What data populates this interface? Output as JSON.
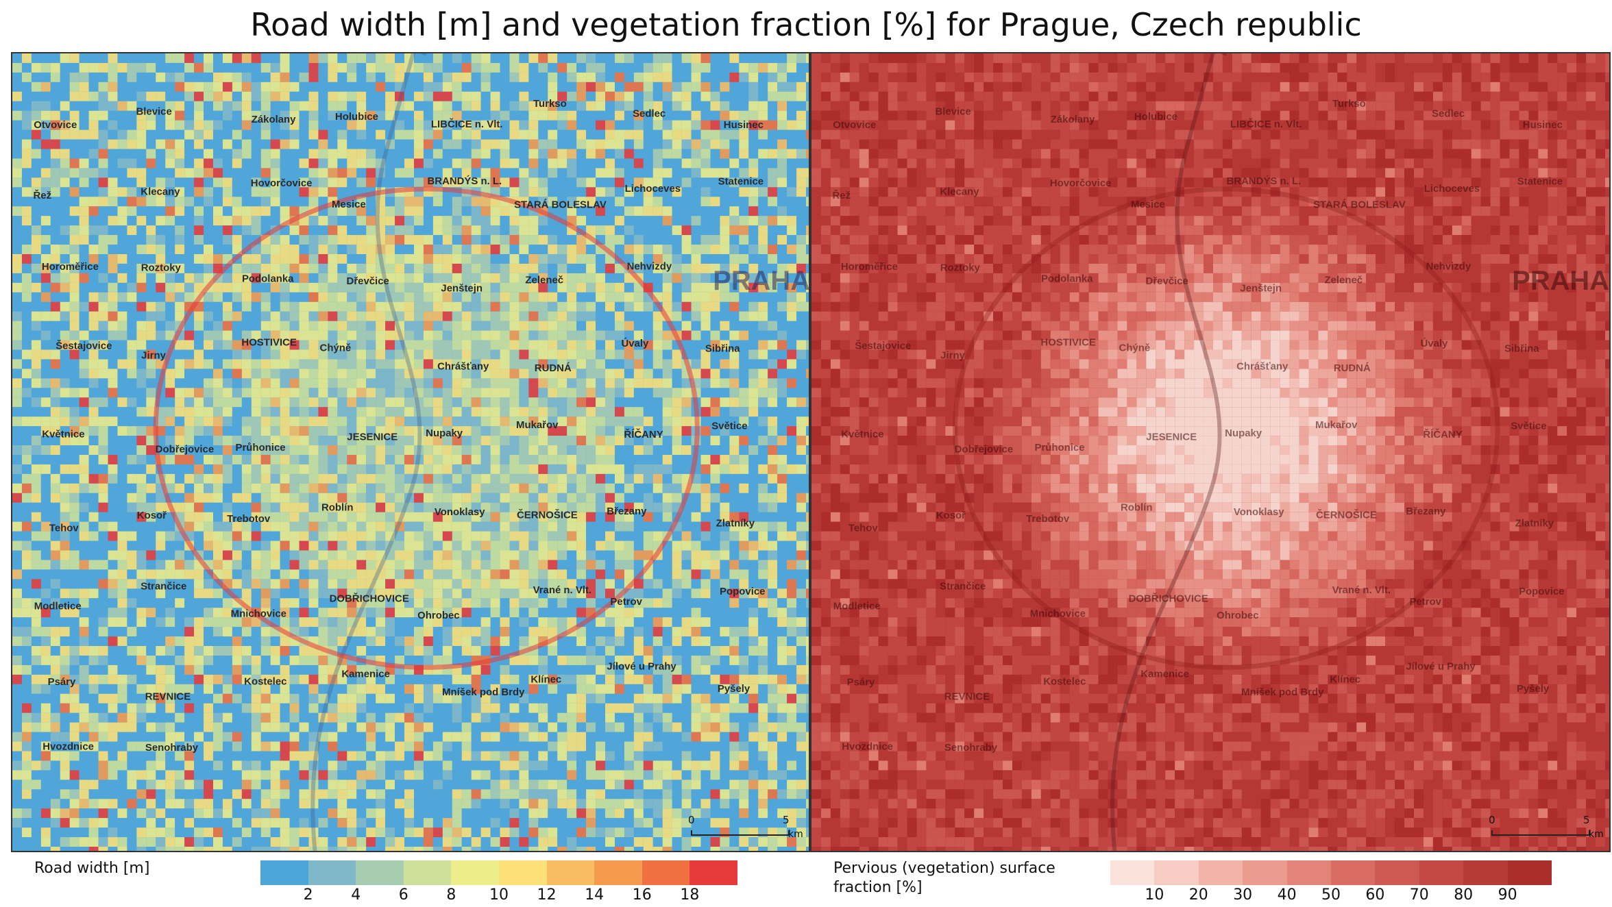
{
  "title": "Road width [m] and vegetation fraction [%] for Prague, Czech republic",
  "left_map": {
    "legend_label": "Road width [m]",
    "ticks": [
      "2",
      "4",
      "6",
      "8",
      "10",
      "12",
      "14",
      "16",
      "18"
    ],
    "colors": [
      "#4ea6d8",
      "#7fb8c9",
      "#a7cdb0",
      "#cde19a",
      "#eded8a",
      "#fbe178",
      "#f9bc62",
      "#f59a4e",
      "#f0703f",
      "#e63b3a"
    ],
    "scale": {
      "left": "0",
      "right": "5",
      "unit": "km"
    },
    "places": [
      "Otvovice",
      "Blevice",
      "Zákolany",
      "Holubice",
      "LIBČICE n. Vlt.",
      "Turkso",
      "Sedlec",
      "Husinec",
      "Řež",
      "Klecany",
      "Hovorčovice",
      "Mesice",
      "BRANDÝS n. L.",
      "STARÁ BOLESLAV",
      "Lichoceves",
      "Statenice",
      "Horoměřice",
      "Roztoky",
      "Podolanka",
      "Dřevčice",
      "Jenštejn",
      "Zeleneč",
      "Nehvizdy",
      "PRAHA",
      "Šestajovice",
      "Jirny",
      "HOSTIVICE",
      "Chýně",
      "Chrášťany",
      "RUDNÁ",
      "Úvaly",
      "Sibřina",
      "Květnice",
      "Dobřejovice",
      "Průhonice",
      "JESENICE",
      "Nupaky",
      "Mukařov",
      "ŘÍČANY",
      "Světice",
      "Tehov",
      "Kosoř",
      "Trebotov",
      "Roblín",
      "Vonoklasy",
      "ČERNOŠICE",
      "Březany",
      "Zlatníky",
      "Modletice",
      "Strančice",
      "Mnichovice",
      "DOBŘICHOVICE",
      "Ohrobec",
      "Vrané n. Vlt.",
      "Petrov",
      "Popovice",
      "Psáry",
      "REVNICE",
      "Kostelec",
      "Kamenice",
      "Mníšek pod Brdy",
      "Klínec",
      "Jílové u Prahy",
      "Pyšely",
      "Hvozdnice",
      "Senohraby"
    ]
  },
  "right_map": {
    "legend_label": "Pervious (vegetation) surface fraction [%]",
    "ticks": [
      "10",
      "20",
      "30",
      "40",
      "50",
      "60",
      "70",
      "80",
      "90"
    ],
    "colors": [
      "#fbe3dc",
      "#f7cdc3",
      "#f2b3a8",
      "#eb9a8e",
      "#e3847a",
      "#d96d63",
      "#cd5a52",
      "#c24943",
      "#b63a36",
      "#ab2e2c"
    ],
    "scale": {
      "left": "0",
      "right": "5",
      "unit": "km"
    }
  }
}
